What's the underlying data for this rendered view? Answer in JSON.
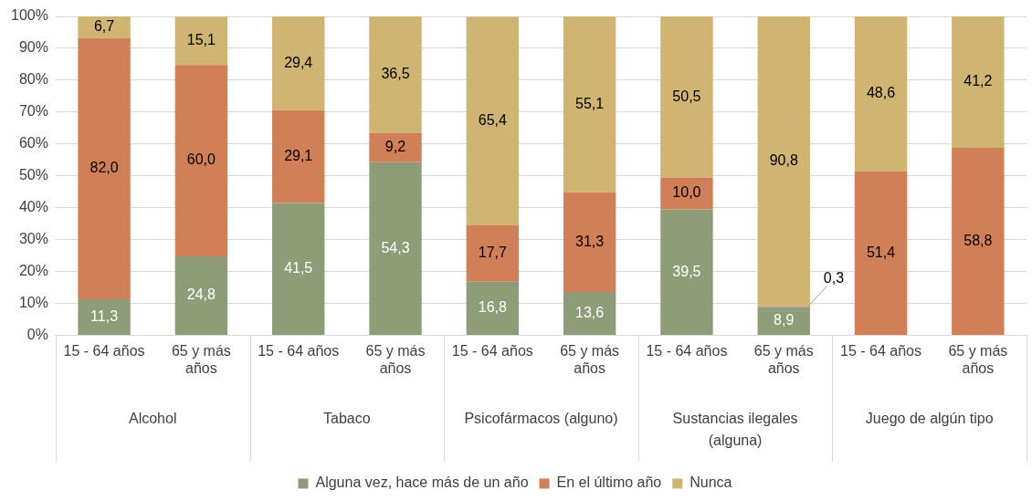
{
  "chart_data": {
    "type": "bar",
    "stacked": true,
    "categories": [
      "15 - 64 años",
      "65 y más años",
      "15 - 64 años",
      "65 y más años",
      "15 - 64 años",
      "65 y más años",
      "15 - 64 años",
      "65 y más años",
      "15 - 64 años",
      "65 y más años"
    ],
    "annotations": [
      "Alcohol",
      "Tabaco",
      "Psicofármacos (alguno)",
      "Sustancias ilegales (alguna)",
      "Juego de algún tipo"
    ],
    "series": [
      {
        "name": "Alguna vez, hace más de un año",
        "color": "#8e9c78",
        "values": [
          11.3,
          24.8,
          41.5,
          54.3,
          16.8,
          13.6,
          39.5,
          8.9,
          null,
          null
        ],
        "value_labels": [
          "11,3",
          "24,8",
          "41,5",
          "54,3",
          "16,8",
          "13,6",
          "39,5",
          "8,9",
          null,
          null
        ]
      },
      {
        "name": "En el último año",
        "color": "#d17f56",
        "values": [
          82.0,
          60.0,
          29.1,
          9.2,
          17.7,
          31.3,
          10.0,
          0.3,
          51.4,
          58.8
        ],
        "value_labels": [
          "82,0",
          "60,0",
          "29,1",
          "9,2",
          "17,7",
          "31,3",
          "10,0",
          "0,3",
          "51,4",
          "58,8"
        ]
      },
      {
        "name": "Nunca",
        "color": "#cfb472",
        "values": [
          6.7,
          15.1,
          29.4,
          36.5,
          65.4,
          55.1,
          50.5,
          90.8,
          48.6,
          41.2
        ],
        "value_labels": [
          "6,7",
          "15,1",
          "29,4",
          "36,5",
          "65,4",
          "55,1",
          "50,5",
          "90,8",
          "48,6",
          "41,2"
        ]
      }
    ],
    "ylim": [
      0,
      100
    ],
    "yticks": [
      {
        "value": 0,
        "label": "0%"
      },
      {
        "value": 10,
        "label": "10%"
      },
      {
        "value": 20,
        "label": "20%"
      },
      {
        "value": 30,
        "label": "30%"
      },
      {
        "value": 40,
        "label": "40%"
      },
      {
        "value": 50,
        "label": "50%"
      },
      {
        "value": 60,
        "label": "60%"
      },
      {
        "value": 70,
        "label": "70%"
      },
      {
        "value": 80,
        "label": "80%"
      },
      {
        "value": 90,
        "label": "90%"
      },
      {
        "value": 100,
        "label": "100%"
      }
    ],
    "grid": "y",
    "legend": "bottom"
  }
}
